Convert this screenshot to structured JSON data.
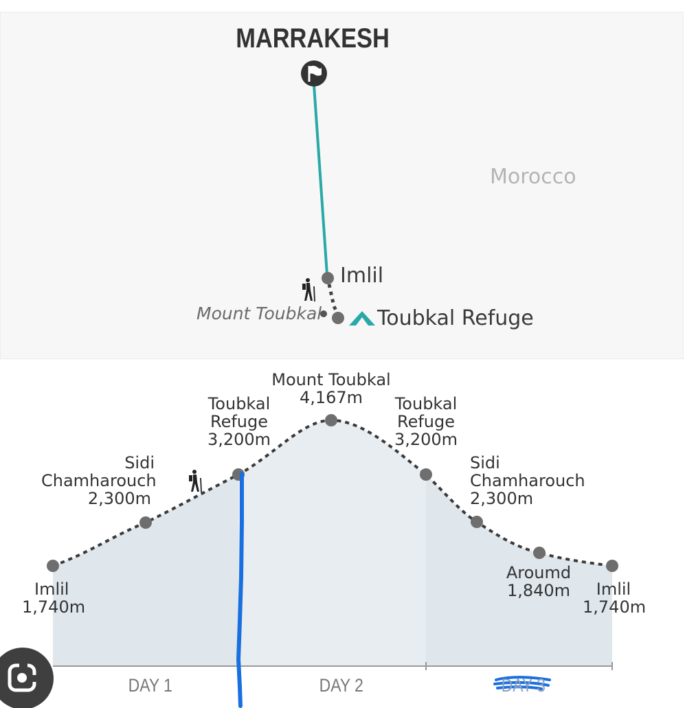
{
  "map": {
    "city": "MARRAKESH",
    "country": "Morocco",
    "labels": {
      "imlil": "Imlil",
      "mount_toubkal": "Mount Toubkal",
      "toubkal_refuge": "Toubkal Refuge"
    },
    "icons": [
      "flag-icon",
      "hiker-icon",
      "tent-icon"
    ],
    "route_color": "#2aa8a8"
  },
  "elevation_profile": {
    "stops": [
      {
        "name": "Imlil",
        "elevation": "1,740m"
      },
      {
        "name": "Sidi Chamharouch",
        "elevation": "2,300m"
      },
      {
        "name": "Toubkal Refuge",
        "elevation": "3,200m"
      },
      {
        "name": "Mount Toubkal",
        "elevation": "4,167m"
      },
      {
        "name": "Toubkal Refuge",
        "elevation": "3,200m"
      },
      {
        "name": "Sidi Chamharouch",
        "elevation": "2,300m"
      },
      {
        "name": "Aroumd",
        "elevation": "1,840m"
      },
      {
        "name": "Imlil",
        "elevation": "1,740m"
      }
    ],
    "days": [
      "DAY 1",
      "DAY 2",
      "DAY 3"
    ],
    "fill_color": "#dfe6ec",
    "marker_color": "#1a6fe0"
  },
  "corner": {
    "icon": "lens-icon"
  }
}
